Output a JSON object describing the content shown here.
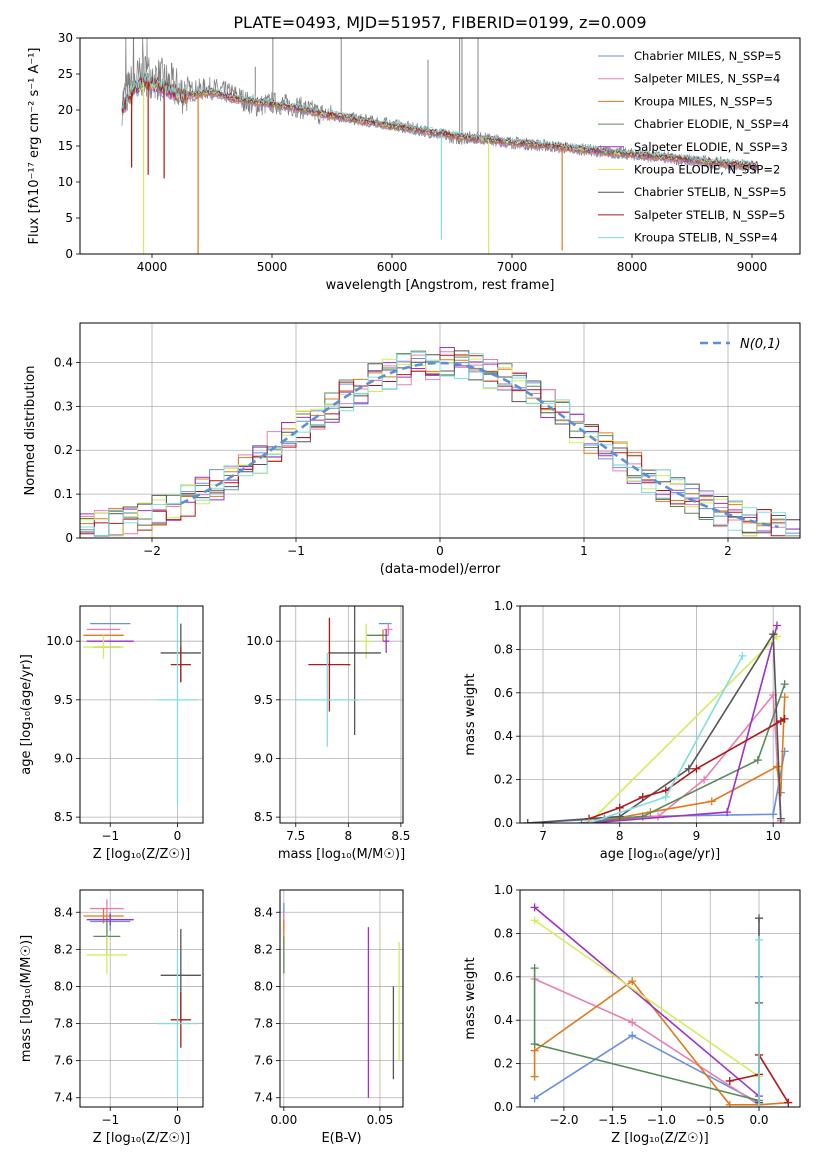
{
  "title": "PLATE=0493, MJD=51957, FIBERID=0199, z=0.009",
  "series_colors": [
    "#6a8fe0",
    "#e87fb0",
    "#e07a1f",
    "#5a8a5a",
    "#a030c8",
    "#d6ec5a",
    "#555555",
    "#b01818",
    "#80dfe0"
  ],
  "chart_data": [
    {
      "type": "line",
      "title": "PLATE=0493, MJD=51957, FIBERID=0199, z=0.009",
      "xlabel": "wavelength [Angstrom, rest frame]",
      "ylabel": "Flux [fλ10⁻¹⁷ erg cm⁻² s⁻¹ A⁻¹]",
      "xlim": [
        3400,
        9400
      ],
      "ylim": [
        0,
        30
      ],
      "xticks": [
        4000,
        5000,
        6000,
        7000,
        8000,
        9000
      ],
      "yticks": [
        0,
        5,
        10,
        15,
        20,
        25,
        30
      ],
      "grid": false,
      "legend_position": "top-right",
      "observed_spectrum": {
        "x": [
          3750,
          3850,
          3950,
          4100,
          4250,
          4500,
          4700,
          4860,
          5000,
          5200,
          5400,
          5600,
          5800,
          6000,
          6300,
          6563,
          6700,
          7000,
          7300,
          7600,
          7900,
          8200,
          8500,
          8800,
          9050
        ],
        "y": [
          21,
          24,
          25,
          24,
          22.5,
          23,
          22,
          20.5,
          21,
          20.5,
          19.5,
          19,
          18.5,
          18,
          17,
          16,
          16.2,
          15.5,
          15,
          14.5,
          14,
          13.5,
          13,
          12.5,
          12
        ]
      },
      "model_continuum": {
        "x": [
          3750,
          3850,
          3950,
          4100,
          4250,
          4500,
          4700,
          5000,
          5200,
          5400,
          5600,
          5800,
          6000,
          6300,
          6600,
          7000,
          7300,
          7600,
          7900,
          8200,
          8500,
          8800,
          9050
        ],
        "y": [
          20,
          23,
          24,
          23,
          22,
          22.5,
          21.5,
          20.8,
          20.3,
          19.5,
          19,
          18.3,
          17.8,
          17,
          16.2,
          15.5,
          15,
          14.5,
          14,
          13.5,
          13,
          12.5,
          12.2
        ]
      },
      "legend": [
        "Chabrier MILES, N_SSP=5",
        "Salpeter MILES, N_SSP=4",
        "Kroupa MILES, N_SSP=5",
        "Chabrier ELODIE, N_SSP=4",
        "Salpeter ELODIE, N_SSP=3",
        "Kroupa ELODIE, N_SSP=2",
        "Chabrier STELIB, N_SSP=5",
        "Salpeter STELIB, N_SSP=5",
        "Kroupa STELIB, N_SSP=4"
      ]
    },
    {
      "type": "line",
      "xlabel": "(data-model)/error",
      "ylabel": "Normed distribution",
      "xlim": [
        -2.5,
        2.5
      ],
      "ylim": [
        0,
        0.49
      ],
      "xticks": [
        -2,
        -1,
        0,
        1,
        2
      ],
      "yticks": [
        0.0,
        0.1,
        0.2,
        0.3,
        0.4
      ],
      "grid": true,
      "legend_position": "top-right",
      "legend": [
        "N(0,1)"
      ],
      "bins": [
        -2.5,
        -2.4,
        -2.3,
        -2.2,
        -2.1,
        -2.0,
        -1.9,
        -1.8,
        -1.7,
        -1.6,
        -1.5,
        -1.4,
        -1.3,
        -1.2,
        -1.1,
        -1.0,
        -0.9,
        -0.8,
        -0.7,
        -0.6,
        -0.5,
        -0.4,
        -0.3,
        -0.2,
        -0.1,
        0.0,
        0.1,
        0.2,
        0.3,
        0.4,
        0.5,
        0.6,
        0.7,
        0.8,
        0.9,
        1.0,
        1.1,
        1.2,
        1.3,
        1.4,
        1.5,
        1.6,
        1.7,
        1.8,
        1.9,
        2.0,
        2.1,
        2.2,
        2.3,
        2.4,
        2.5
      ]
    },
    {
      "type": "scatter",
      "xlabel": "Z [log₁₀(Z/Z☉)]",
      "ylabel": "age [log₁₀(age/yr)]",
      "xlim": [
        -1.45,
        0.38
      ],
      "ylim": [
        8.45,
        10.3
      ],
      "xticks": [
        -1,
        0
      ],
      "yticks": [
        8.5,
        9.0,
        9.5,
        10.0
      ],
      "grid": true,
      "points": [
        {
          "x": -1.0,
          "y": 10.15,
          "xerr": 0.3,
          "yerr": 0.0
        },
        {
          "x": -1.1,
          "y": 10.1,
          "xerr": 0.25,
          "yerr": 0.0
        },
        {
          "x": -1.1,
          "y": 10.05,
          "xerr": 0.3,
          "yerr": 0.0
        },
        {
          "x": -1.05,
          "y": 9.95,
          "xerr": 0.2,
          "yerr": 0.0
        },
        {
          "x": -1.0,
          "y": 10.0,
          "xerr": 0.35,
          "yerr": 0.0
        },
        {
          "x": -1.1,
          "y": 9.95,
          "xerr": 0.3,
          "yerr": 0.1
        },
        {
          "x": 0.05,
          "y": 9.9,
          "xerr": 0.3,
          "yerr": 0.25
        },
        {
          "x": 0.05,
          "y": 9.8,
          "xerr": 0.15,
          "yerr": 0.15
        },
        {
          "x": 0.0,
          "y": 9.5,
          "xerr": 0.3,
          "yerr": 0.9
        }
      ]
    },
    {
      "type": "scatter",
      "xlabel": "mass [log₁₀(M/M☉)]",
      "xlim": [
        7.35,
        8.52
      ],
      "ylim": [
        8.45,
        10.3
      ],
      "xticks": [
        7.5,
        8.0,
        8.5
      ],
      "yticks": [
        8.5,
        9.0,
        9.5,
        10.0
      ],
      "grid": true,
      "points": [
        {
          "x": 8.35,
          "y": 10.15,
          "xerr": 0.06,
          "yerr": 0.0
        },
        {
          "x": 8.38,
          "y": 10.1,
          "xerr": 0.04,
          "yerr": 0.05
        },
        {
          "x": 8.33,
          "y": 10.05,
          "xerr": 0.05,
          "yerr": 0.05
        },
        {
          "x": 8.27,
          "y": 10.05,
          "xerr": 0.1,
          "yerr": 0.0
        },
        {
          "x": 8.36,
          "y": 10.0,
          "xerr": 0.03,
          "yerr": 0.1
        },
        {
          "x": 8.17,
          "y": 10.0,
          "xerr": 0.05,
          "yerr": 0.15
        },
        {
          "x": 8.06,
          "y": 9.9,
          "xerr": 0.25,
          "yerr": 0.7
        },
        {
          "x": 7.82,
          "y": 9.8,
          "xerr": 0.2,
          "yerr": 0.4
        },
        {
          "x": 7.8,
          "y": 9.5,
          "xerr": 0.3,
          "yerr": 0.4
        }
      ]
    },
    {
      "type": "line",
      "xlabel": "age [log₁₀(age/yr)]",
      "ylabel": "mass weight",
      "xlim": [
        6.7,
        10.35
      ],
      "ylim": [
        0,
        1.0
      ],
      "xticks": [
        7,
        8,
        9,
        10
      ],
      "yticks": [
        0.0,
        0.2,
        0.4,
        0.6,
        0.8,
        1.0
      ],
      "grid": true,
      "series": [
        {
          "x": [
            6.8,
            7.8,
            8.3,
            10.0,
            10.15
          ],
          "y": [
            0.0,
            0.02,
            0.03,
            0.04,
            0.33
          ]
        },
        {
          "x": [
            7.6,
            8.5,
            9.1,
            10.0,
            10.1
          ],
          "y": [
            0.0,
            0.03,
            0.2,
            0.59,
            0.01
          ]
        },
        {
          "x": [
            7.6,
            8.4,
            9.2,
            10.05,
            10.1,
            10.15
          ],
          "y": [
            0.0,
            0.05,
            0.1,
            0.26,
            0.14,
            0.58
          ]
        },
        {
          "x": [
            7.5,
            8.3,
            9.8,
            10.15
          ],
          "y": [
            0.0,
            0.03,
            0.29,
            0.64
          ]
        },
        {
          "x": [
            7.6,
            9.4,
            10.05
          ],
          "y": [
            0.0,
            0.05,
            0.91
          ]
        },
        {
          "x": [
            7.6,
            10.05
          ],
          "y": [
            0.0,
            0.86
          ]
        },
        {
          "x": [
            6.8,
            8.0,
            8.9,
            10.0,
            10.1
          ],
          "y": [
            0.0,
            0.03,
            0.25,
            0.87,
            0.02
          ]
        },
        {
          "x": [
            7.6,
            8.0,
            8.3,
            8.6,
            9.0,
            10.1,
            10.15
          ],
          "y": [
            0.02,
            0.07,
            0.12,
            0.15,
            0.25,
            0.47,
            0.48
          ]
        },
        {
          "x": [
            7.6,
            8.6,
            9.6
          ],
          "y": [
            0.0,
            0.12,
            0.77
          ]
        }
      ]
    },
    {
      "type": "scatter",
      "xlabel": "Z [log₁₀(Z/Z☉)]",
      "ylabel": "mass [log₁₀(M/M☉)]",
      "xlim": [
        -1.45,
        0.38
      ],
      "ylim": [
        7.35,
        8.52
      ],
      "xticks": [
        -1,
        0
      ],
      "yticks": [
        7.4,
        7.6,
        7.8,
        8.0,
        8.2,
        8.4
      ],
      "grid": true,
      "points": [
        {
          "x": -1.0,
          "y": 8.35,
          "xerr": 0.3,
          "yerr": 0.05
        },
        {
          "x": -1.05,
          "y": 8.42,
          "xerr": 0.25,
          "yerr": 0.05
        },
        {
          "x": -1.1,
          "y": 8.38,
          "xerr": 0.3,
          "yerr": 0.04
        },
        {
          "x": -1.05,
          "y": 8.27,
          "xerr": 0.2,
          "yerr": 0.1
        },
        {
          "x": -1.0,
          "y": 8.36,
          "xerr": 0.35,
          "yerr": 0.03
        },
        {
          "x": -1.05,
          "y": 8.17,
          "xerr": 0.3,
          "yerr": 0.1
        },
        {
          "x": 0.05,
          "y": 8.06,
          "xerr": 0.3,
          "yerr": 0.25
        },
        {
          "x": 0.05,
          "y": 7.82,
          "xerr": 0.15,
          "yerr": 0.15
        },
        {
          "x": 0.0,
          "y": 7.8,
          "xerr": 0.3,
          "yerr": 0.4
        }
      ]
    },
    {
      "type": "scatter",
      "xlabel": "E(B-V)",
      "xlim": [
        -0.002,
        0.062
      ],
      "ylim": [
        7.35,
        8.52
      ],
      "xticks": [
        0.0,
        0.05
      ],
      "yticks": [
        7.4,
        7.6,
        7.8,
        8.0,
        8.2,
        8.4
      ],
      "grid": true,
      "points": [
        {
          "x": 0.0,
          "y": 8.4,
          "xerr": 0.0,
          "yerr": 0.05
        },
        {
          "x": 0.0,
          "y": 8.35,
          "xerr": 0.0,
          "yerr": 0.05
        },
        {
          "x": 0.0,
          "y": 8.28,
          "xerr": 0.0,
          "yerr": 0.08
        },
        {
          "x": 0.0,
          "y": 8.17,
          "xerr": 0.0,
          "yerr": 0.1
        },
        {
          "x": 0.044,
          "y": 7.86,
          "xerr": 0.0,
          "yerr": 0.46
        },
        {
          "x": 0.06,
          "y": 7.92,
          "xerr": 0.0,
          "yerr": 0.32
        },
        {
          "x": 0.057,
          "y": 7.75,
          "xerr": 0.0,
          "yerr": 0.25
        }
      ]
    },
    {
      "type": "line",
      "xlabel": "Z [log₁₀(Z/Z☉)]",
      "ylabel": "mass weight",
      "xlim": [
        -2.45,
        0.42
      ],
      "ylim": [
        0,
        1.0
      ],
      "xticks": [
        -2.0,
        -1.5,
        -1.0,
        -0.5,
        0.0
      ],
      "yticks": [
        0.0,
        0.2,
        0.4,
        0.6,
        0.8,
        1.0
      ],
      "grid": true,
      "series": [
        {
          "x": [
            -2.3,
            -1.3,
            0.0,
            0.0
          ],
          "y": [
            0.04,
            0.33,
            0.02,
            0.6
          ]
        },
        {
          "x": [
            -2.3,
            -1.3,
            0.0
          ],
          "y": [
            0.59,
            0.39,
            0.01
          ]
        },
        {
          "x": [
            -2.3,
            -2.3,
            -1.3,
            -0.3,
            0.0,
            0.3
          ],
          "y": [
            0.14,
            0.26,
            0.58,
            0.01,
            0.01,
            0.02
          ]
        },
        {
          "x": [
            -2.3,
            -2.3,
            0.0,
            0.0
          ],
          "y": [
            0.64,
            0.29,
            0.03,
            0.03
          ]
        },
        {
          "x": [
            -2.3,
            0.0
          ],
          "y": [
            0.92,
            0.05
          ]
        },
        {
          "x": [
            -2.3,
            0.0
          ],
          "y": [
            0.86,
            0.14
          ]
        },
        {
          "x": [
            0.0,
            0.0,
            0.0
          ],
          "y": [
            0.87,
            0.48,
            0.02
          ]
        },
        {
          "x": [
            -0.3,
            0.0,
            0.0,
            0.3
          ],
          "y": [
            0.12,
            0.15,
            0.24,
            0.02
          ]
        },
        {
          "x": [
            0.0,
            0.0
          ],
          "y": [
            0.77,
            0.0
          ]
        }
      ]
    }
  ]
}
